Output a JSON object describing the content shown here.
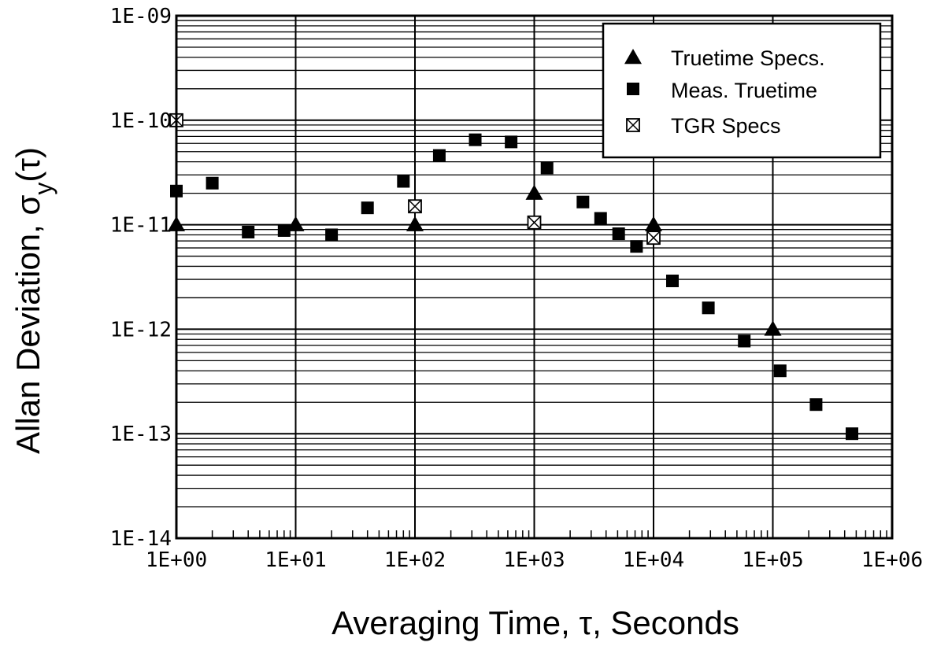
{
  "chart_data": {
    "type": "scatter",
    "x_scale": "log",
    "y_scale": "log",
    "xlim": [
      1,
      1000000
    ],
    "ylim": [
      1e-14,
      1e-09
    ],
    "grid": true,
    "legend_position": "top-right",
    "xlabel": "Averaging Time, τ, Seconds",
    "ylabel": {
      "main": "Allan Deviation, σ",
      "subscript": "y",
      "suffix": "(τ)"
    },
    "x_tick_labels": [
      "1E+00",
      "1E+01",
      "1E+02",
      "1E+03",
      "1E+04",
      "1E+05",
      "1E+06"
    ],
    "x_tick_values": [
      1,
      10,
      100,
      1000,
      10000,
      100000,
      1000000
    ],
    "y_tick_labels": [
      "1E-14",
      "1E-13",
      "1E-12",
      "1E-11",
      "1E-10",
      "1E-09"
    ],
    "y_tick_values": [
      1e-14,
      1e-13,
      1e-12,
      1e-11,
      1e-10,
      1e-09
    ],
    "series": [
      {
        "name": "Truetime Specs.",
        "marker": "triangle",
        "color": "#000000",
        "points": [
          [
            1,
            1e-11
          ],
          [
            10,
            1e-11
          ],
          [
            100,
            1e-11
          ],
          [
            1000,
            2e-11
          ],
          [
            10000,
            1e-11
          ],
          [
            100000,
            1e-12
          ]
        ]
      },
      {
        "name": "Meas. Truetime",
        "marker": "square",
        "color": "#000000",
        "points": [
          [
            1,
            2.1e-11
          ],
          [
            2,
            2.5e-11
          ],
          [
            4,
            8.5e-12
          ],
          [
            8,
            8.8e-12
          ],
          [
            20,
            8e-12
          ],
          [
            40,
            1.45e-11
          ],
          [
            80,
            2.6e-11
          ],
          [
            160,
            4.6e-11
          ],
          [
            320,
            6.5e-11
          ],
          [
            640,
            6.2e-11
          ],
          [
            1280,
            3.5e-11
          ],
          [
            2560,
            1.65e-11
          ],
          [
            3600,
            1.15e-11
          ],
          [
            5100,
            8.2e-12
          ],
          [
            7200,
            6.2e-12
          ],
          [
            14400,
            2.9e-12
          ],
          [
            28800,
            1.6e-12
          ],
          [
            57600,
            7.7e-13
          ],
          [
            115200,
            4e-13
          ],
          [
            230400,
            1.9e-13
          ],
          [
            460800,
            1e-13
          ]
        ]
      },
      {
        "name": "TGR Specs",
        "marker": "boxed-x",
        "color": "#000000",
        "points": [
          [
            1,
            1e-10
          ],
          [
            100,
            1.5e-11
          ],
          [
            1000,
            1.05e-11
          ],
          [
            10000,
            7.5e-12
          ]
        ]
      }
    ]
  }
}
